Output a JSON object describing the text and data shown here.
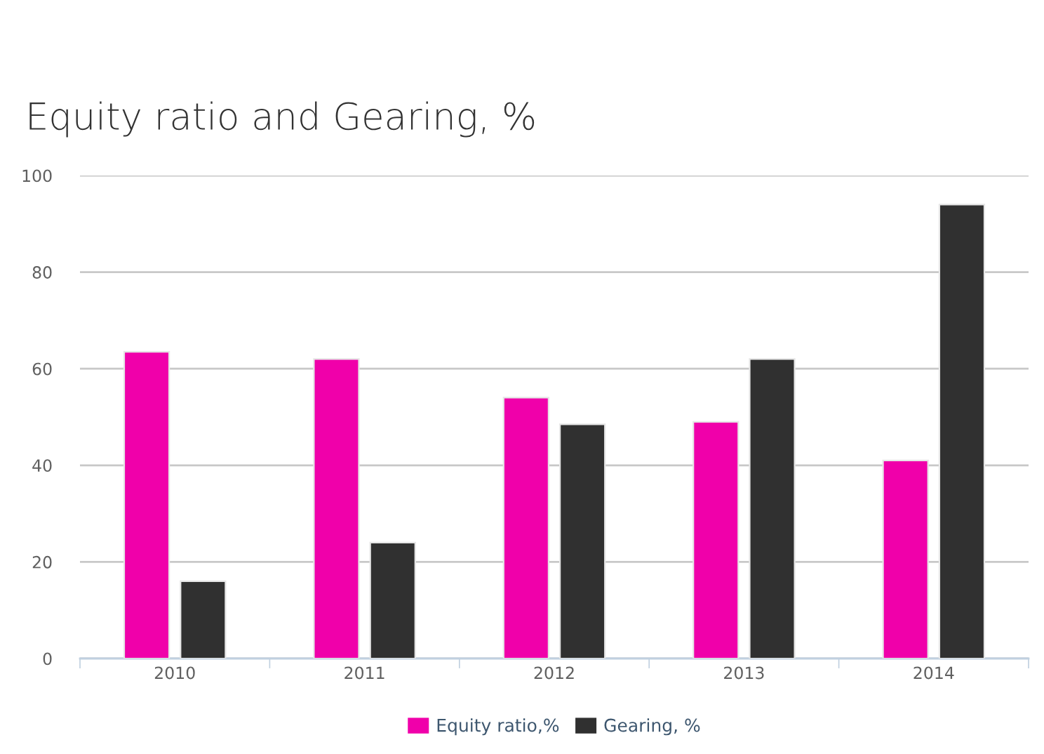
{
  "chart_data": {
    "type": "bar",
    "title": "Equity ratio and Gearing, %",
    "categories": [
      "2010",
      "2011",
      "2012",
      "2013",
      "2014"
    ],
    "series": [
      {
        "name": "Equity ratio,%",
        "color": "#f000aa",
        "values": [
          63.5,
          62,
          54,
          49,
          41
        ]
      },
      {
        "name": "Gearing, %",
        "color": "#303030",
        "values": [
          16,
          24,
          48.5,
          62,
          94
        ]
      }
    ],
    "ylim": [
      0,
      100
    ],
    "yticks": [
      0,
      20,
      40,
      60,
      80,
      100
    ],
    "grid": "y",
    "legend": "bottom"
  }
}
